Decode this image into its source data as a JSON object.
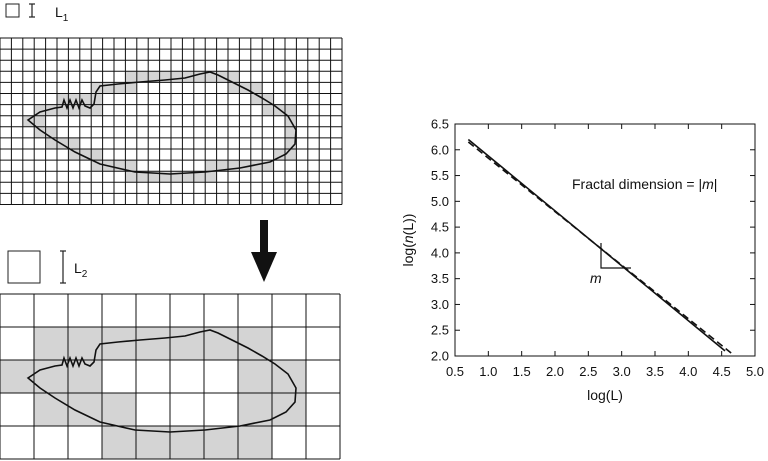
{
  "panels": {
    "fine_grid": {
      "box_label_main": "L",
      "box_label_sub": "1"
    },
    "coarse_grid": {
      "box_label_main": "L",
      "box_label_sub": "2"
    }
  },
  "chart_data": {
    "type": "line",
    "xlabel": "log(L)",
    "ylabel_parts": [
      "log(",
      "n",
      "(L))"
    ],
    "xlim": [
      0.5,
      5.0
    ],
    "ylim": [
      2.0,
      6.5
    ],
    "x_ticks": [
      "0.5",
      "1.0",
      "1.5",
      "2.0",
      "2.5",
      "3.0",
      "3.5",
      "4.0",
      "4.5",
      "5.0"
    ],
    "y_ticks": [
      "2.0",
      "2.5",
      "3.0",
      "3.5",
      "4.0",
      "4.5",
      "5.0",
      "5.5",
      "6.0",
      "6.5"
    ],
    "series": [
      {
        "style": "solid",
        "x": [
          0.7,
          4.55
        ],
        "y": [
          6.2,
          2.1
        ]
      },
      {
        "style": "dashed",
        "x": [
          0.7,
          4.65
        ],
        "y": [
          6.15,
          2.05
        ]
      }
    ],
    "annotation": {
      "prefix": "Fractal dimension = |",
      "slope_symbol": "m",
      "suffix": "|"
    },
    "slope_label": "m"
  }
}
